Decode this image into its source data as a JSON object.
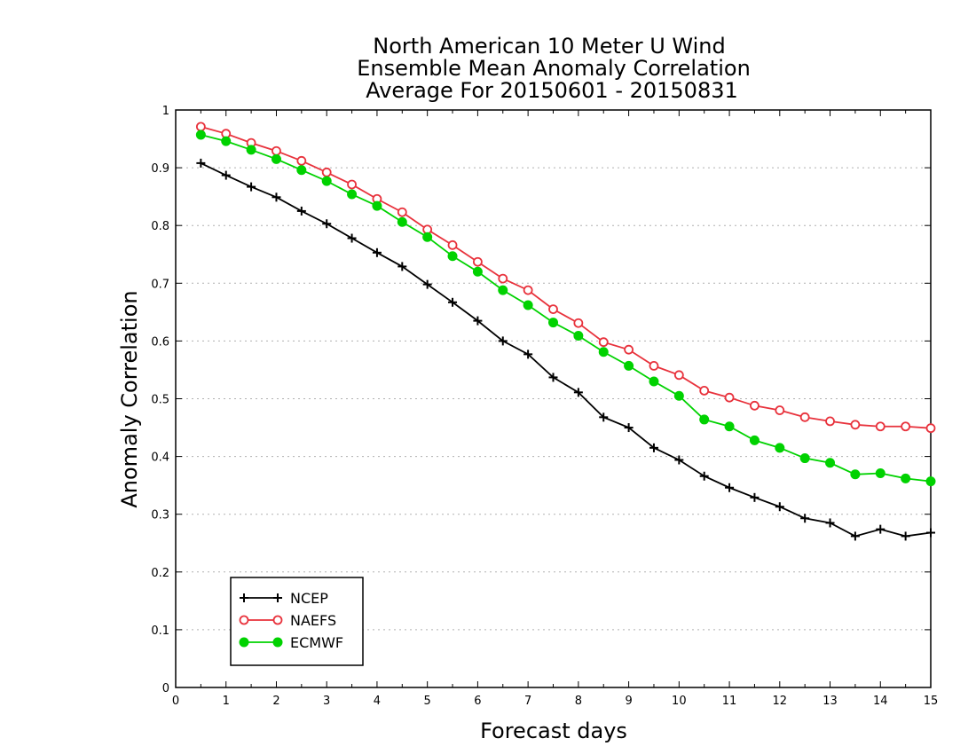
{
  "chart_data": {
    "type": "line",
    "title_lines": [
      "North American 10 Meter U Wind",
      "Ensemble Mean Anomaly Correlation",
      "Average For 20150601 - 20150831"
    ],
    "xlabel": "Forecast days",
    "ylabel": "Anomaly Correlation",
    "xlim": [
      0,
      15
    ],
    "ylim": [
      0,
      1
    ],
    "grid": true,
    "legend_position": "bottom-left",
    "xticks": [
      "0",
      "1",
      "2",
      "3",
      "4",
      "5",
      "6",
      "7",
      "8",
      "9",
      "10",
      "11",
      "12",
      "13",
      "14",
      "15"
    ],
    "yticks": [
      "0",
      "0.1",
      "0.2",
      "0.3",
      "0.4",
      "0.5",
      "0.6",
      "0.7",
      "0.8",
      "0.9",
      "1"
    ],
    "x": [
      0.5,
      1,
      1.5,
      2,
      2.5,
      3,
      3.5,
      4,
      4.5,
      5,
      5.5,
      6,
      6.5,
      7,
      7.5,
      8,
      8.5,
      9,
      9.5,
      10,
      10.5,
      11,
      11.5,
      12,
      12.5,
      13,
      13.5,
      14,
      14.5,
      15
    ],
    "series": [
      {
        "name": "NCEP",
        "color": "#000000",
        "marker": "plus",
        "values": [
          0.908,
          0.887,
          0.867,
          0.849,
          0.825,
          0.803,
          0.778,
          0.753,
          0.729,
          0.698,
          0.667,
          0.635,
          0.6,
          0.577,
          0.537,
          0.511,
          0.468,
          0.45,
          0.415,
          0.394,
          0.366,
          0.346,
          0.329,
          0.313,
          0.293,
          0.285,
          0.262,
          0.274,
          0.262,
          0.268
        ]
      },
      {
        "name": "NAEFS",
        "color": "#e8323c",
        "marker": "open-circle",
        "values": [
          0.971,
          0.959,
          0.943,
          0.929,
          0.912,
          0.892,
          0.871,
          0.846,
          0.823,
          0.793,
          0.766,
          0.737,
          0.708,
          0.688,
          0.655,
          0.631,
          0.598,
          0.585,
          0.557,
          0.541,
          0.514,
          0.502,
          0.488,
          0.48,
          0.468,
          0.461,
          0.455,
          0.452,
          0.452,
          0.449
        ]
      },
      {
        "name": "ECMWF",
        "color": "#00d200",
        "marker": "filled-circle",
        "values": [
          0.957,
          0.946,
          0.931,
          0.915,
          0.896,
          0.877,
          0.854,
          0.834,
          0.806,
          0.78,
          0.747,
          0.72,
          0.688,
          0.662,
          0.632,
          0.609,
          0.581,
          0.557,
          0.53,
          0.505,
          0.464,
          0.452,
          0.428,
          0.415,
          0.397,
          0.389,
          0.369,
          0.371,
          0.362,
          0.357
        ]
      }
    ]
  }
}
